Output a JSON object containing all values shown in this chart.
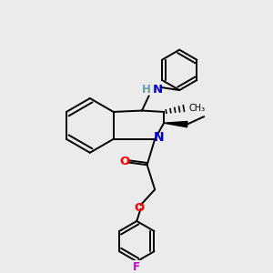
{
  "bg_color": "#ebebeb",
  "atom_colors": {
    "N": "#0000cd",
    "O": "#ff0000",
    "F": "#cc00cc",
    "H_N": "#5f9ea0"
  },
  "line_color": "#000000",
  "lw": 1.4,
  "font_size": 8.5,
  "scale": 1.0
}
